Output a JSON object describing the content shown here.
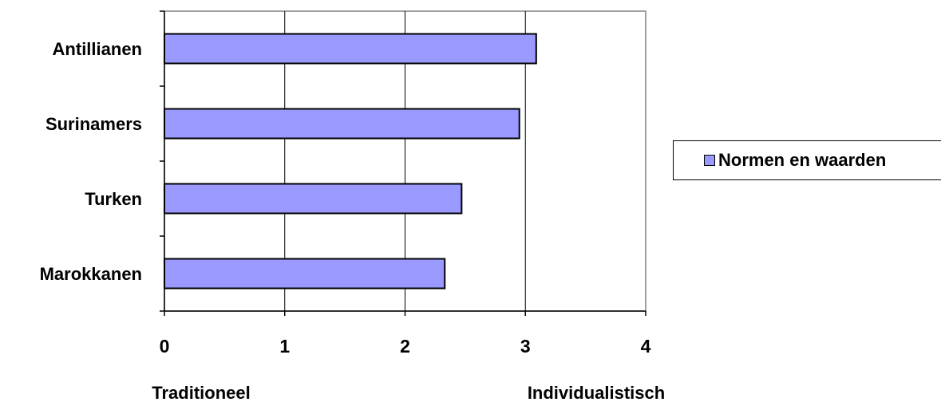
{
  "chart_data": {
    "type": "bar",
    "orientation": "horizontal",
    "categories": [
      "Antillianen",
      "Surinamers",
      "Turken",
      "Marokkanen"
    ],
    "series": [
      {
        "name": "Normen en waarden",
        "values": [
          3.09,
          2.95,
          2.47,
          2.33
        ],
        "color": "#9999ff"
      }
    ],
    "xlim": [
      0,
      4
    ],
    "x_ticks": [
      "0",
      "1",
      "2",
      "3",
      "4"
    ],
    "x_axis_end_labels": {
      "left": "Traditioneel",
      "right": "Individualistisch"
    },
    "grid": "vertical",
    "legend_position": "right"
  }
}
